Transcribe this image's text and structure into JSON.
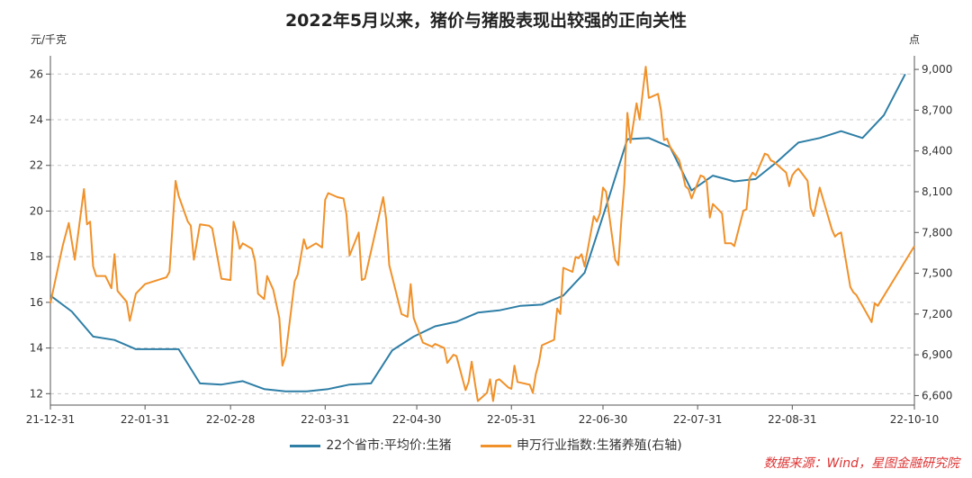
{
  "chart_data": {
    "type": "line",
    "title": "2022年5月以来，猪价与猪股表现出较强的正向关性",
    "left_unit": "元/千克",
    "right_unit": "点",
    "x_ticks": [
      "21-12-31",
      "22-01-31",
      "22-02-28",
      "22-03-31",
      "22-04-30",
      "22-05-31",
      "22-06-30",
      "22-07-31",
      "22-08-31",
      "22-10-10"
    ],
    "x_range": [
      "2021-12-31",
      "2022-10-10"
    ],
    "y_left": {
      "ticks": [
        12,
        14,
        16,
        18,
        20,
        22,
        24,
        26
      ],
      "range": [
        11.5,
        26.8
      ]
    },
    "y_right": {
      "ticks": [
        "6,600",
        "6,900",
        "7,200",
        "7,500",
        "7,800",
        "8,100",
        "8,400",
        "8,700",
        "9,000"
      ],
      "range": [
        6530,
        9100
      ]
    },
    "grid": "horizontal dashed",
    "legend_position": "bottom",
    "colors": {
      "pig_price": "#2e7ea6",
      "index": "#f0912a",
      "source": "#d33333"
    },
    "series": [
      {
        "name": "22个省市:平均价:生猪",
        "axis": "left",
        "points": [
          [
            "2021-12-31",
            16.3
          ],
          [
            "2022-01-07",
            15.6
          ],
          [
            "2022-01-14",
            14.5
          ],
          [
            "2022-01-21",
            14.35
          ],
          [
            "2022-01-28",
            13.95
          ],
          [
            "2022-02-04",
            13.95
          ],
          [
            "2022-02-11",
            13.95
          ],
          [
            "2022-02-18",
            12.45
          ],
          [
            "2022-02-25",
            12.4
          ],
          [
            "2022-03-04",
            12.55
          ],
          [
            "2022-03-11",
            12.2
          ],
          [
            "2022-03-18",
            12.1
          ],
          [
            "2022-03-25",
            12.1
          ],
          [
            "2022-04-01",
            12.2
          ],
          [
            "2022-04-08",
            12.4
          ],
          [
            "2022-04-15",
            12.45
          ],
          [
            "2022-04-22",
            13.9
          ],
          [
            "2022-04-29",
            14.5
          ],
          [
            "2022-05-06",
            14.95
          ],
          [
            "2022-05-13",
            15.15
          ],
          [
            "2022-05-20",
            15.55
          ],
          [
            "2022-05-27",
            15.65
          ],
          [
            "2022-06-03",
            15.85
          ],
          [
            "2022-06-10",
            15.9
          ],
          [
            "2022-06-17",
            16.3
          ],
          [
            "2022-06-24",
            17.3
          ],
          [
            "2022-07-01",
            20.2
          ],
          [
            "2022-07-08",
            23.15
          ],
          [
            "2022-07-15",
            23.2
          ],
          [
            "2022-07-22",
            22.8
          ],
          [
            "2022-07-29",
            20.9
          ],
          [
            "2022-08-05",
            21.55
          ],
          [
            "2022-08-12",
            21.3
          ],
          [
            "2022-08-19",
            21.4
          ],
          [
            "2022-08-26",
            22.15
          ],
          [
            "2022-09-02",
            23.0
          ],
          [
            "2022-09-09",
            23.2
          ],
          [
            "2022-09-16",
            23.5
          ],
          [
            "2022-09-23",
            23.2
          ],
          [
            "2022-09-30",
            24.2
          ],
          [
            "2022-10-07",
            26.0
          ]
        ]
      },
      {
        "name": "申万行业指数:生猪养殖(右轴)",
        "axis": "right",
        "points": [
          [
            "2021-12-31",
            7280
          ],
          [
            "2022-01-04",
            7700
          ],
          [
            "2022-01-06",
            7870
          ],
          [
            "2022-01-08",
            7600
          ],
          [
            "2022-01-11",
            8120
          ],
          [
            "2022-01-12",
            7860
          ],
          [
            "2022-01-13",
            7880
          ],
          [
            "2022-01-14",
            7550
          ],
          [
            "2022-01-15",
            7480
          ],
          [
            "2022-01-18",
            7480
          ],
          [
            "2022-01-20",
            7390
          ],
          [
            "2022-01-21",
            7640
          ],
          [
            "2022-01-22",
            7370
          ],
          [
            "2022-01-25",
            7290
          ],
          [
            "2022-01-26",
            7150
          ],
          [
            "2022-01-27",
            7250
          ],
          [
            "2022-01-28",
            7350
          ],
          [
            "2022-01-31",
            7420
          ],
          [
            "2022-02-07",
            7470
          ],
          [
            "2022-02-08",
            7510
          ],
          [
            "2022-02-10",
            8180
          ],
          [
            "2022-02-11",
            8070
          ],
          [
            "2022-02-14",
            7880
          ],
          [
            "2022-02-15",
            7850
          ],
          [
            "2022-02-16",
            7600
          ],
          [
            "2022-02-18",
            7860
          ],
          [
            "2022-02-21",
            7850
          ],
          [
            "2022-02-22",
            7830
          ],
          [
            "2022-02-25",
            7460
          ],
          [
            "2022-02-28",
            7450
          ],
          [
            "2022-03-01",
            7880
          ],
          [
            "2022-03-02",
            7800
          ],
          [
            "2022-03-03",
            7680
          ],
          [
            "2022-03-04",
            7720
          ],
          [
            "2022-03-07",
            7680
          ],
          [
            "2022-03-08",
            7590
          ],
          [
            "2022-03-09",
            7350
          ],
          [
            "2022-03-11",
            7310
          ],
          [
            "2022-03-12",
            7480
          ],
          [
            "2022-03-14",
            7380
          ],
          [
            "2022-03-16",
            7170
          ],
          [
            "2022-03-17",
            6820
          ],
          [
            "2022-03-18",
            6890
          ],
          [
            "2022-03-21",
            7440
          ],
          [
            "2022-03-22",
            7490
          ],
          [
            "2022-03-24",
            7750
          ],
          [
            "2022-03-25",
            7680
          ],
          [
            "2022-03-28",
            7720
          ],
          [
            "2022-03-30",
            7690
          ],
          [
            "2022-03-31",
            8040
          ],
          [
            "2022-04-01",
            8090
          ],
          [
            "2022-04-04",
            8060
          ],
          [
            "2022-04-06",
            8050
          ],
          [
            "2022-04-07",
            7930
          ],
          [
            "2022-04-08",
            7630
          ],
          [
            "2022-04-11",
            7800
          ],
          [
            "2022-04-12",
            7450
          ],
          [
            "2022-04-13",
            7460
          ],
          [
            "2022-04-18",
            7960
          ],
          [
            "2022-04-19",
            8060
          ],
          [
            "2022-04-20",
            7900
          ],
          [
            "2022-04-21",
            7560
          ],
          [
            "2022-04-25",
            7200
          ],
          [
            "2022-04-26",
            7190
          ],
          [
            "2022-04-27",
            7180
          ],
          [
            "2022-04-28",
            7420
          ],
          [
            "2022-04-29",
            7170
          ],
          [
            "2022-05-02",
            6990
          ],
          [
            "2022-05-05",
            6960
          ],
          [
            "2022-05-06",
            6980
          ],
          [
            "2022-05-09",
            6950
          ],
          [
            "2022-05-10",
            6840
          ],
          [
            "2022-05-12",
            6900
          ],
          [
            "2022-05-13",
            6890
          ],
          [
            "2022-05-16",
            6640
          ],
          [
            "2022-05-17",
            6700
          ],
          [
            "2022-05-18",
            6850
          ],
          [
            "2022-05-19",
            6700
          ],
          [
            "2022-05-20",
            6560
          ],
          [
            "2022-05-23",
            6620
          ],
          [
            "2022-05-24",
            6720
          ],
          [
            "2022-05-25",
            6560
          ],
          [
            "2022-05-26",
            6710
          ],
          [
            "2022-05-27",
            6720
          ],
          [
            "2022-05-30",
            6660
          ],
          [
            "2022-05-31",
            6650
          ],
          [
            "2022-06-01",
            6820
          ],
          [
            "2022-06-02",
            6700
          ],
          [
            "2022-06-06",
            6680
          ],
          [
            "2022-06-07",
            6620
          ],
          [
            "2022-06-08",
            6760
          ],
          [
            "2022-06-09",
            6840
          ],
          [
            "2022-06-10",
            6970
          ],
          [
            "2022-06-13",
            7000
          ],
          [
            "2022-06-14",
            7010
          ],
          [
            "2022-06-15",
            7240
          ],
          [
            "2022-06-16",
            7200
          ],
          [
            "2022-06-17",
            7540
          ],
          [
            "2022-06-20",
            7510
          ],
          [
            "2022-06-21",
            7620
          ],
          [
            "2022-06-22",
            7610
          ],
          [
            "2022-06-23",
            7640
          ],
          [
            "2022-06-24",
            7550
          ],
          [
            "2022-06-27",
            7920
          ],
          [
            "2022-06-28",
            7880
          ],
          [
            "2022-06-29",
            7940
          ],
          [
            "2022-06-30",
            8130
          ],
          [
            "2022-07-01",
            8100
          ],
          [
            "2022-07-04",
            7600
          ],
          [
            "2022-07-05",
            7560
          ],
          [
            "2022-07-06",
            7880
          ],
          [
            "2022-07-07",
            8160
          ],
          [
            "2022-07-08",
            8680
          ],
          [
            "2022-07-09",
            8460
          ],
          [
            "2022-07-11",
            8750
          ],
          [
            "2022-07-12",
            8630
          ],
          [
            "2022-07-13",
            8830
          ],
          [
            "2022-07-14",
            9020
          ],
          [
            "2022-07-15",
            8790
          ],
          [
            "2022-07-18",
            8820
          ],
          [
            "2022-07-19",
            8700
          ],
          [
            "2022-07-20",
            8480
          ],
          [
            "2022-07-21",
            8490
          ],
          [
            "2022-07-22",
            8430
          ],
          [
            "2022-07-25",
            8330
          ],
          [
            "2022-07-26",
            8240
          ],
          [
            "2022-07-27",
            8140
          ],
          [
            "2022-07-28",
            8120
          ],
          [
            "2022-07-29",
            8050
          ],
          [
            "2022-08-01",
            8220
          ],
          [
            "2022-08-02",
            8210
          ],
          [
            "2022-08-03",
            8170
          ],
          [
            "2022-08-04",
            7910
          ],
          [
            "2022-08-05",
            8010
          ],
          [
            "2022-08-08",
            7940
          ],
          [
            "2022-08-09",
            7720
          ],
          [
            "2022-08-10",
            7720
          ],
          [
            "2022-08-11",
            7720
          ],
          [
            "2022-08-12",
            7700
          ],
          [
            "2022-08-15",
            7960
          ],
          [
            "2022-08-16",
            7970
          ],
          [
            "2022-08-17",
            8200
          ],
          [
            "2022-08-18",
            8240
          ],
          [
            "2022-08-19",
            8220
          ],
          [
            "2022-08-22",
            8380
          ],
          [
            "2022-08-23",
            8370
          ],
          [
            "2022-08-24",
            8330
          ],
          [
            "2022-08-25",
            8320
          ],
          [
            "2022-08-26",
            8300
          ],
          [
            "2022-08-29",
            8240
          ],
          [
            "2022-08-30",
            8140
          ],
          [
            "2022-08-31",
            8220
          ],
          [
            "2022-09-01",
            8250
          ],
          [
            "2022-09-02",
            8270
          ],
          [
            "2022-09-05",
            8180
          ],
          [
            "2022-09-06",
            7980
          ],
          [
            "2022-09-07",
            7920
          ],
          [
            "2022-09-09",
            8130
          ],
          [
            "2022-09-13",
            7820
          ],
          [
            "2022-09-14",
            7770
          ],
          [
            "2022-09-15",
            7790
          ],
          [
            "2022-09-16",
            7800
          ],
          [
            "2022-09-19",
            7400
          ],
          [
            "2022-09-20",
            7360
          ],
          [
            "2022-09-21",
            7340
          ],
          [
            "2022-09-22",
            7300
          ],
          [
            "2022-09-23",
            7260
          ],
          [
            "2022-09-26",
            7140
          ],
          [
            "2022-09-27",
            7280
          ],
          [
            "2022-09-28",
            7260
          ],
          [
            "2022-10-10",
            7700
          ]
        ]
      }
    ]
  },
  "legend": {
    "pig_price": "22个省市:平均价:生猪",
    "index": "申万行业指数:生猪养殖(右轴)"
  },
  "source": "数据来源：Wind，星图金融研究院"
}
